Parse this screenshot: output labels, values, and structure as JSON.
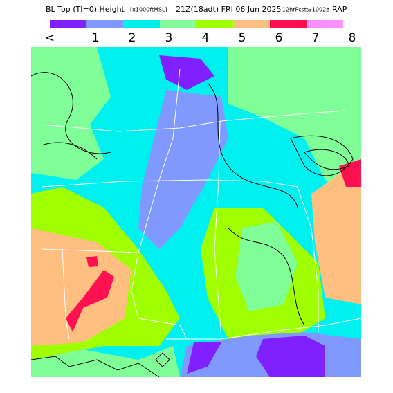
{
  "header": {
    "title": "BL Top (TI=0) Height",
    "units": "[x1000ftMSL]",
    "valid": "21Z(18adt) FRI 06 Jun 2025",
    "forecast": "12hrFcst@1002z",
    "model": "RAP"
  },
  "legend": {
    "colors": [
      "#8020ff",
      "#8099ff",
      "#00f0f0",
      "#80ff99",
      "#a0ff00",
      "#ffbf80",
      "#ff1050",
      "#ff90ff"
    ],
    "labels": [
      "<",
      "1",
      "2",
      "3",
      "4",
      "5",
      "6",
      "7",
      "8"
    ]
  }
}
